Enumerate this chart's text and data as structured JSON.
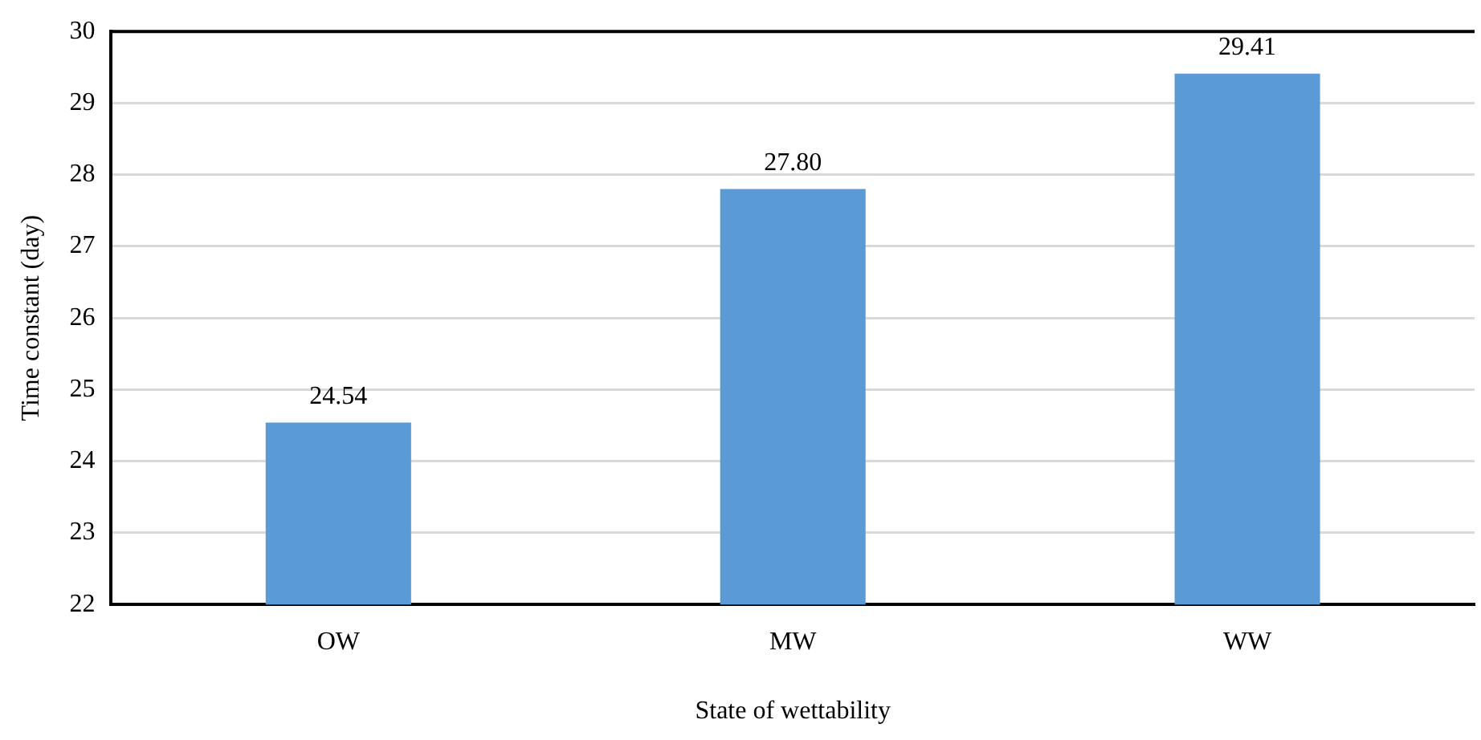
{
  "chart_data": {
    "type": "bar",
    "xlabel": "State of wettability",
    "ylabel": "Time constant (day)",
    "categories": [
      "OW",
      "MW",
      "WW"
    ],
    "values": [
      24.54,
      27.8,
      29.41
    ],
    "value_labels": [
      "24.54",
      "27.80",
      "29.41"
    ],
    "color": "#5b9bd5",
    "ylim": [
      22,
      30
    ],
    "yticks": [
      22,
      23,
      24,
      25,
      26,
      27,
      28,
      29,
      30
    ],
    "grid": "y",
    "legend": false
  }
}
